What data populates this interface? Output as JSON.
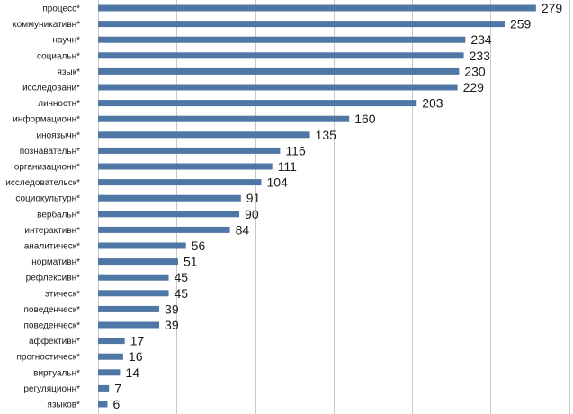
{
  "chart_data": {
    "type": "bar",
    "orientation": "horizontal",
    "title": "",
    "xlabel": "",
    "ylabel": "",
    "grid": true,
    "xlim": [
      0,
      300
    ],
    "gridlines": [
      0,
      50,
      100,
      150,
      200,
      250,
      300
    ],
    "bar_color": "#4f77a6",
    "categories": [
      "процесс*",
      "коммуникативн*",
      "научн*",
      "социальн*",
      "язык*",
      "исследовани*",
      "личностн*",
      "информационн*",
      "иноязычн*",
      "познавательн*",
      "организационн*",
      "исследовательск*",
      "социокультурн*",
      "вербальн*",
      "интерактивн*",
      "аналитическ*",
      "нормативн*",
      "рефлексивн*",
      "этическ*",
      "поведенческ*",
      "поведенческ*",
      "аффективн*",
      "прогностическ*",
      "виртуальн*",
      "регуляционн*",
      "языков*"
    ],
    "values": [
      279,
      259,
      234,
      233,
      230,
      229,
      203,
      160,
      135,
      116,
      111,
      104,
      91,
      90,
      84,
      56,
      51,
      45,
      45,
      39,
      39,
      17,
      16,
      14,
      7,
      6
    ]
  }
}
